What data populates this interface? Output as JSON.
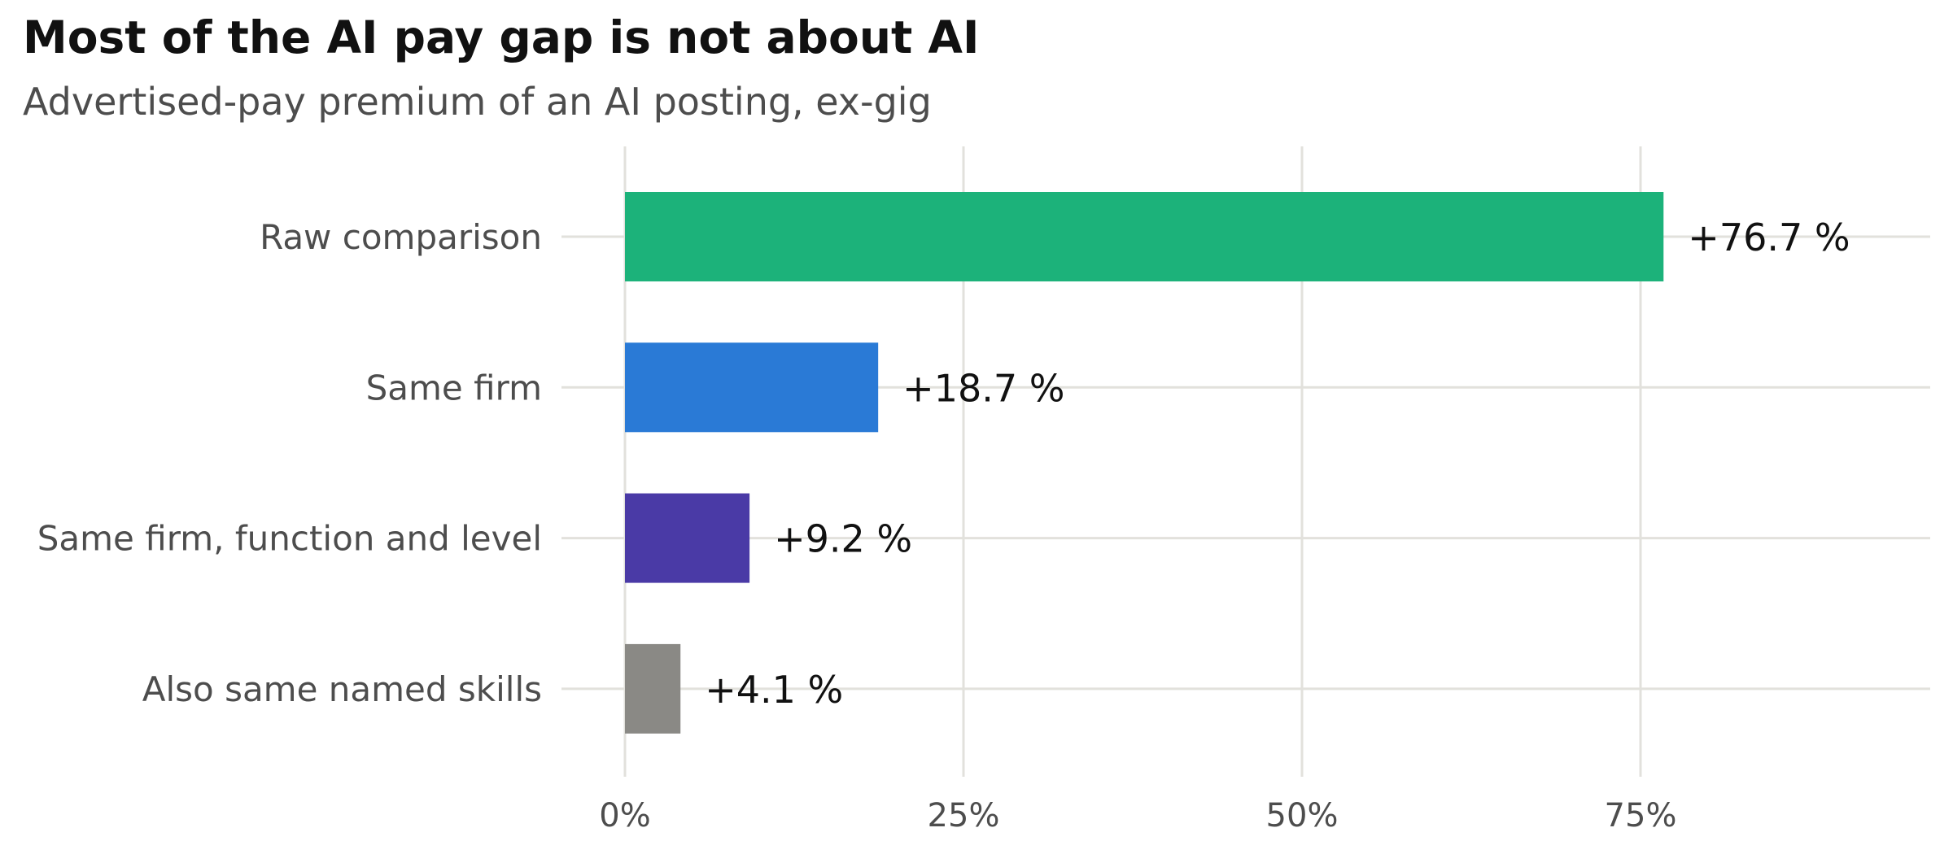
{
  "title": "Most of the AI pay gap is not about AI",
  "subtitle": "Advertised-pay premium of an AI posting, ex-gig",
  "chart_data": {
    "type": "bar",
    "orientation": "horizontal",
    "title": "Most of the AI pay gap is not about AI",
    "subtitle": "Advertised-pay premium of an AI posting, ex-gig",
    "xlabel": "",
    "ylabel": "",
    "categories": [
      "Raw comparison",
      "Same firm",
      "Same firm, function and level",
      "Also same named skills"
    ],
    "values": [
      76.7,
      18.7,
      9.2,
      4.1
    ],
    "data_labels": [
      "+76.7 %",
      "+18.7 %",
      "+9.2 %",
      "+4.1 %"
    ],
    "colors": [
      "#1cb27a",
      "#2a7ad6",
      "#4a3aa6",
      "#8a8985"
    ],
    "xlim": [
      0,
      95
    ],
    "x_ticks": [
      0,
      25,
      50,
      75
    ],
    "x_tick_labels": [
      "0%",
      "25%",
      "50%",
      "75%"
    ],
    "grid": true,
    "legend": "none"
  }
}
